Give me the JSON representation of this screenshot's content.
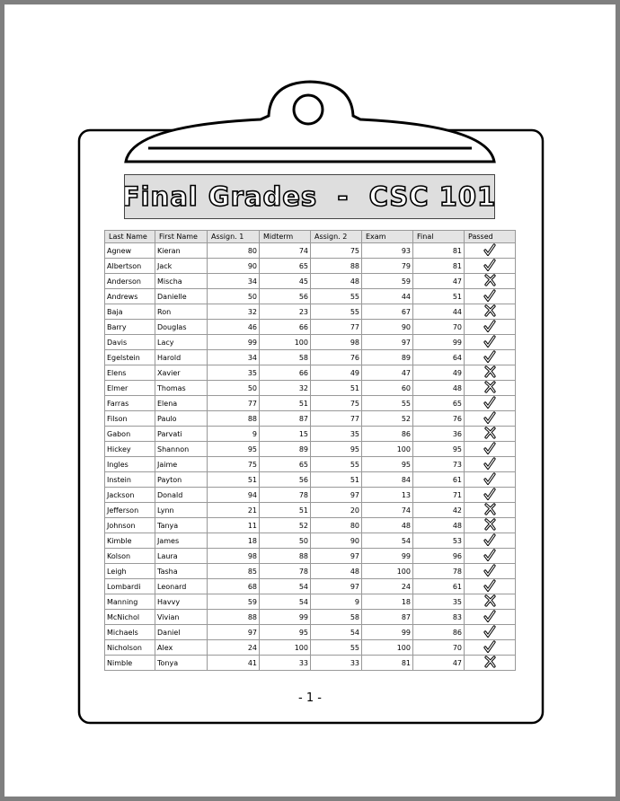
{
  "header": {
    "title": "Final Grades  -  CSC 101"
  },
  "table": {
    "columns": [
      "Last Name",
      "First Name",
      "Assign. 1",
      "Midterm",
      "Assign. 2",
      "Exam",
      "Final",
      "Passed"
    ],
    "rows": [
      [
        "Agnew",
        "Kieran",
        80,
        74,
        75,
        93,
        81
      ],
      [
        "Albertson",
        "Jack",
        90,
        65,
        88,
        79,
        81
      ],
      [
        "Anderson",
        "Mischa",
        34,
        45,
        48,
        59,
        47
      ],
      [
        "Andrews",
        "Danielle",
        50,
        56,
        55,
        44,
        51
      ],
      [
        "Baja",
        "Ron",
        32,
        23,
        55,
        67,
        44
      ],
      [
        "Barry",
        "Douglas",
        46,
        66,
        77,
        90,
        70
      ],
      [
        "Davis",
        "Lacy",
        99,
        100,
        98,
        97,
        99
      ],
      [
        "Egelstein",
        "Harold",
        34,
        58,
        76,
        89,
        64
      ],
      [
        "Elens",
        "Xavier",
        35,
        66,
        49,
        47,
        49
      ],
      [
        "Elmer",
        "Thomas",
        50,
        32,
        51,
        60,
        48
      ],
      [
        "Farras",
        "Elena",
        77,
        51,
        75,
        55,
        65
      ],
      [
        "Filson",
        "Paulo",
        88,
        87,
        77,
        52,
        76
      ],
      [
        "Gabon",
        "Parvati",
        9,
        15,
        35,
        86,
        36
      ],
      [
        "Hickey",
        "Shannon",
        95,
        89,
        95,
        100,
        95
      ],
      [
        "Ingles",
        "Jaime",
        75,
        65,
        55,
        95,
        73
      ],
      [
        "Instein",
        "Payton",
        51,
        56,
        51,
        84,
        61
      ],
      [
        "Jackson",
        "Donald",
        94,
        78,
        97,
        13,
        71
      ],
      [
        "Jefferson",
        "Lynn",
        21,
        51,
        20,
        74,
        42
      ],
      [
        "Johnson",
        "Tanya",
        11,
        52,
        80,
        48,
        48
      ],
      [
        "Kimble",
        "James",
        18,
        50,
        90,
        54,
        53
      ],
      [
        "Kolson",
        "Laura",
        98,
        88,
        97,
        99,
        96
      ],
      [
        "Leigh",
        "Tasha",
        85,
        78,
        48,
        100,
        78
      ],
      [
        "Lombardi",
        "Leonard",
        68,
        54,
        97,
        24,
        61
      ],
      [
        "Manning",
        "Havvy",
        59,
        54,
        9,
        18,
        35
      ],
      [
        "McNichol",
        "Vivian",
        88,
        99,
        58,
        87,
        83
      ],
      [
        "Michaels",
        "Daniel",
        97,
        95,
        54,
        99,
        86
      ],
      [
        "Nicholson",
        "Alex",
        24,
        100,
        55,
        100,
        70
      ],
      [
        "Nimble",
        "Tonya",
        41,
        33,
        33,
        81,
        47
      ]
    ],
    "passed": [
      true,
      true,
      false,
      true,
      false,
      true,
      true,
      true,
      false,
      false,
      true,
      true,
      false,
      true,
      true,
      true,
      true,
      false,
      false,
      true,
      true,
      true,
      true,
      false,
      true,
      true,
      true,
      false
    ]
  },
  "footer": {
    "page": "- 1 -"
  }
}
